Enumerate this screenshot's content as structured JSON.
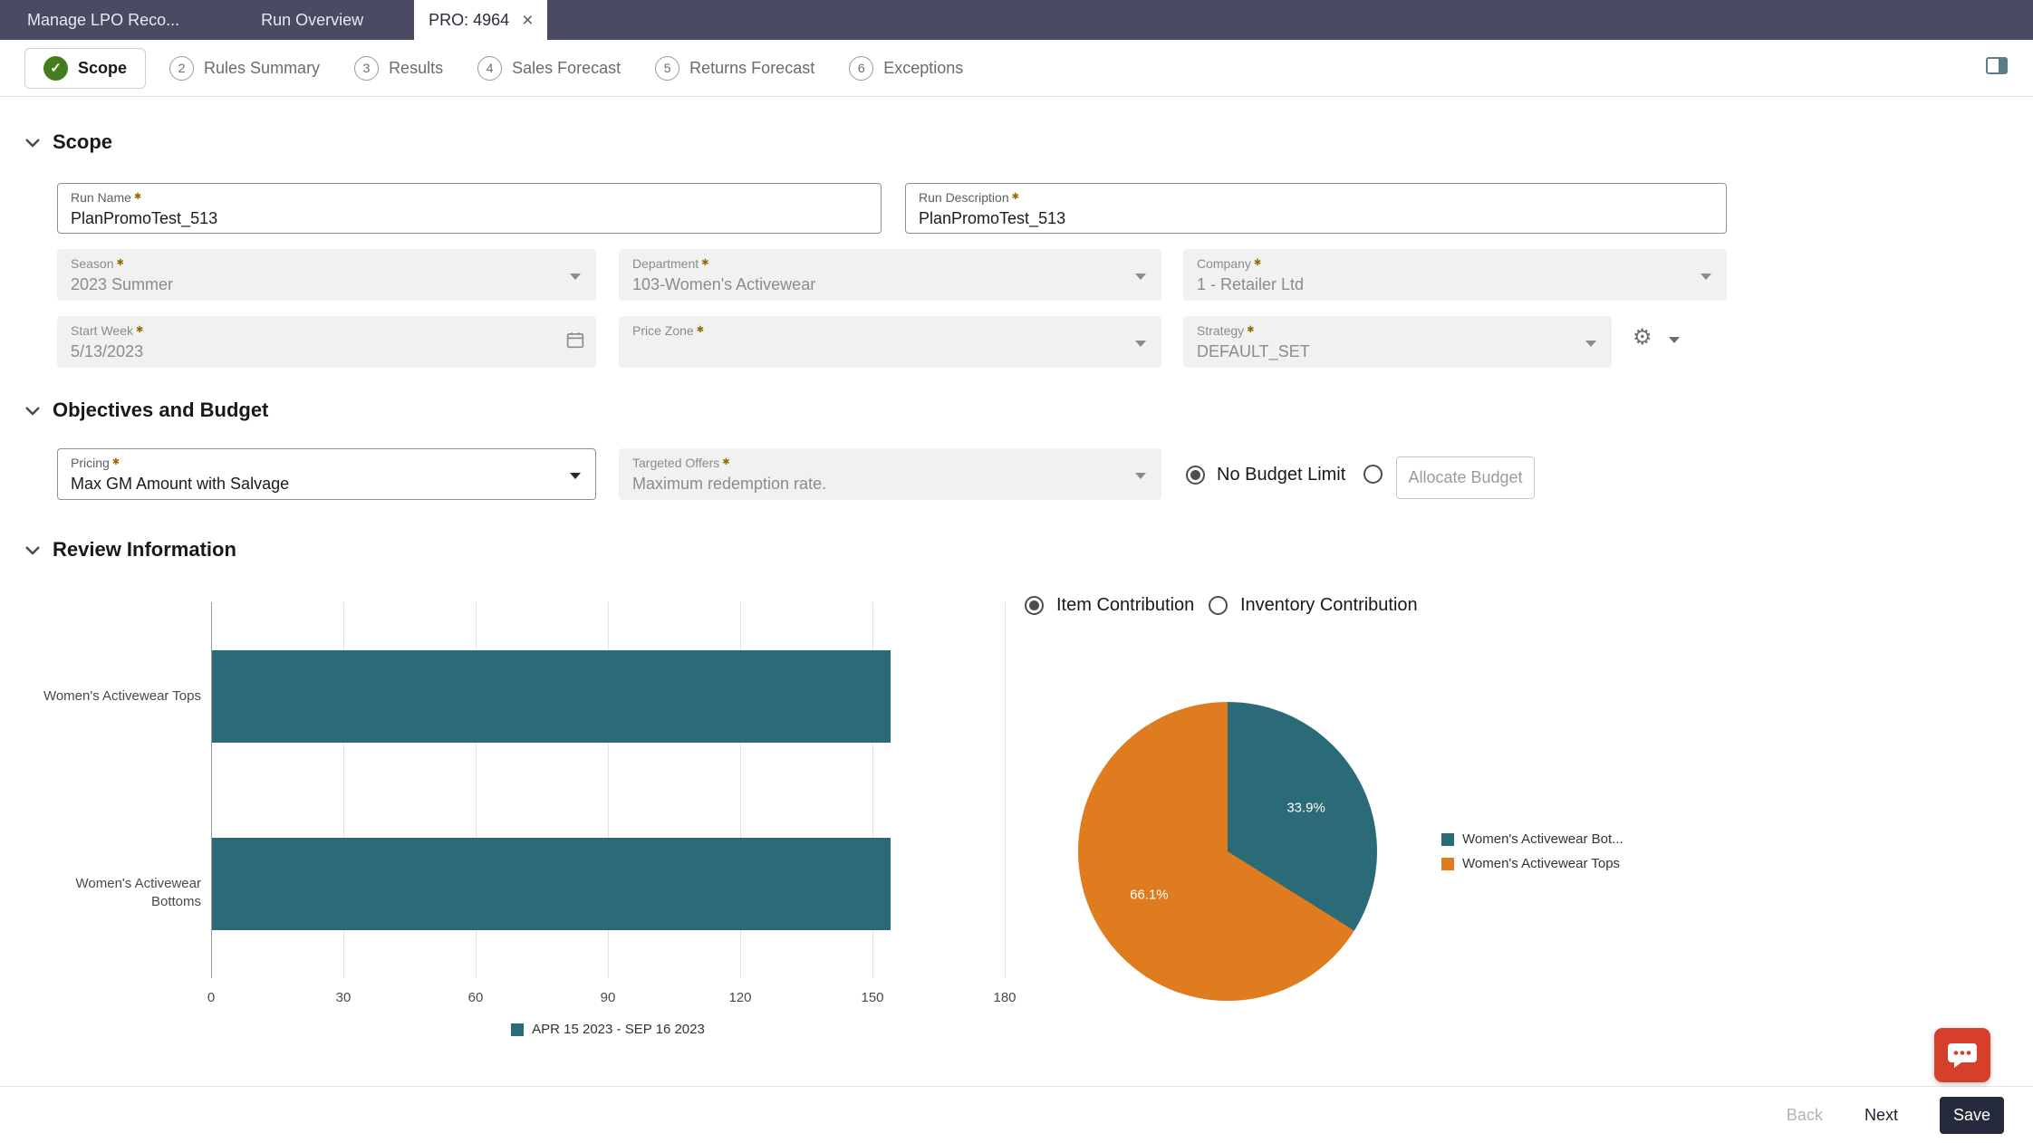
{
  "colors": {
    "topbar_bg": "#4a4a63",
    "active_step_green": "#447d1d",
    "teal": "#2b6b77",
    "orange": "#df7c1f",
    "fab_red": "#d6402b",
    "save_button_bg": "#252b3d"
  },
  "topbar": {
    "tabs": [
      {
        "label": "Manage LPO Reco..."
      },
      {
        "label": "Run Overview"
      },
      {
        "label": "PRO: 4964",
        "close": "×"
      }
    ]
  },
  "stepper": {
    "steps": [
      {
        "label": "Scope",
        "check": "✓"
      },
      {
        "num": "2",
        "label": "Rules Summary"
      },
      {
        "num": "3",
        "label": "Results"
      },
      {
        "num": "4",
        "label": "Sales Forecast"
      },
      {
        "num": "5",
        "label": "Returns Forecast"
      },
      {
        "num": "6",
        "label": "Exceptions"
      }
    ]
  },
  "scope": {
    "title": "Scope",
    "run_name": {
      "label": "Run Name",
      "value": "PlanPromoTest_513"
    },
    "run_description": {
      "label": "Run Description",
      "value": "PlanPromoTest_513"
    },
    "season": {
      "label": "Season",
      "value": "2023 Summer"
    },
    "department": {
      "label": "Department",
      "value": "103-Women's Activewear"
    },
    "company": {
      "label": "Company",
      "value": "1 - Retailer Ltd"
    },
    "start_week": {
      "label": "Start Week",
      "value": "5/13/2023"
    },
    "price_zone": {
      "label": "Price Zone",
      "value": ""
    },
    "strategy": {
      "label": "Strategy",
      "value": "DEFAULT_SET"
    }
  },
  "objectives": {
    "title": "Objectives and Budget",
    "pricing": {
      "label": "Pricing",
      "value": "Max GM Amount with Salvage"
    },
    "targeted_offers": {
      "label": "Targeted Offers",
      "value": "Maximum redemption rate."
    },
    "no_budget_limit": "No Budget Limit",
    "allocate_budget": "Allocate Budget"
  },
  "review": {
    "title": "Review Information",
    "item_contribution": "Item Contribution",
    "inventory_contribution": "Inventory Contribution"
  },
  "footer": {
    "back": "Back",
    "next": "Next",
    "save": "Save"
  },
  "chart_data": [
    {
      "type": "bar",
      "orientation": "horizontal",
      "title": "",
      "xlabel": "",
      "ylabel": "",
      "categories": [
        "Women's Activewear Tops",
        "Women's Activewear Bottoms"
      ],
      "series": [
        {
          "name": "APR 15 2023 - SEP 16 2023",
          "color": "#2b6b77",
          "values": [
            154,
            154
          ]
        }
      ],
      "xlim": [
        0,
        180
      ],
      "xticks": [
        0,
        30,
        60,
        90,
        120,
        150,
        180
      ],
      "grid": true,
      "legend_position": "bottom"
    },
    {
      "type": "pie",
      "slices": [
        {
          "label": "Women's Activewear Bot...",
          "pct": 33.9,
          "color": "#2b6b77",
          "data_label": "33.9%"
        },
        {
          "label": "Women's Activewear Tops",
          "pct": 66.1,
          "color": "#df7c1f",
          "data_label": "66.1%"
        }
      ],
      "start_angle_deg": 0,
      "direction": "clockwise",
      "legend_position": "right"
    }
  ]
}
